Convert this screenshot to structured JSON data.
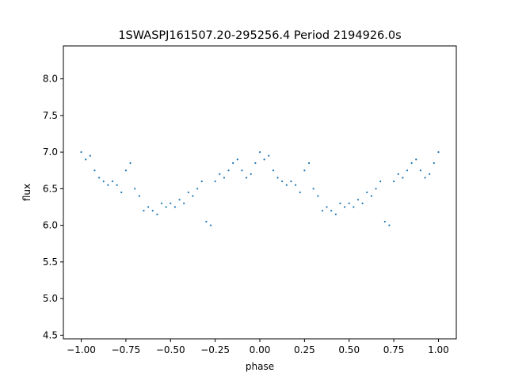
{
  "chart_data": {
    "type": "scatter",
    "title": "1SWASPJ161507.20-295256.4 Period 2194926.0s",
    "xlabel": "phase",
    "ylabel": "flux",
    "xlim": [
      -1.1,
      1.1
    ],
    "ylim": [
      4.45,
      8.45
    ],
    "xticks": [
      -1.0,
      -0.75,
      -0.5,
      -0.25,
      0.0,
      0.25,
      0.5,
      0.75,
      1.0
    ],
    "xtick_labels": [
      "−1.00",
      "−0.75",
      "−0.50",
      "−0.25",
      "0.00",
      "0.25",
      "0.50",
      "0.75",
      "1.00"
    ],
    "yticks": [
      4.5,
      5.0,
      5.5,
      6.0,
      6.5,
      7.0,
      7.5,
      8.0
    ],
    "ytick_labels": [
      "4.5",
      "5.0",
      "5.5",
      "6.0",
      "6.5",
      "7.0",
      "7.5",
      "8.0"
    ],
    "grid": false,
    "marker_color": "#1f77b4",
    "series": [
      {
        "x": [
          -1.0,
          -0.975,
          -0.95,
          -0.925,
          -0.9,
          -0.875,
          -0.85,
          -0.825,
          -0.8,
          -0.775,
          -0.75,
          -0.725,
          -0.7,
          -0.675,
          -0.65,
          -0.625,
          -0.6,
          -0.575,
          -0.55,
          -0.525,
          -0.5,
          -0.475,
          -0.45,
          -0.425,
          -0.4,
          -0.375,
          -0.35,
          -0.325,
          -0.3,
          -0.275,
          -0.25,
          -0.225,
          -0.2,
          -0.175,
          -0.15,
          -0.125,
          -0.1,
          -0.075,
          -0.05,
          -0.025,
          0.0,
          0.025,
          0.05,
          0.075,
          0.1,
          0.125,
          0.15,
          0.175,
          0.2,
          0.225,
          0.25,
          0.275,
          0.3,
          0.325,
          0.35,
          0.375,
          0.4,
          0.425,
          0.45,
          0.475,
          0.5,
          0.525,
          0.55,
          0.575,
          0.6,
          0.625,
          0.65,
          0.675,
          0.7,
          0.725,
          0.75,
          0.775,
          0.8,
          0.825,
          0.85,
          0.875,
          0.9,
          0.925,
          0.95,
          0.975,
          1.0
        ],
        "y": [
          7.0,
          6.9,
          6.95,
          6.75,
          6.65,
          6.6,
          6.55,
          6.6,
          6.55,
          6.45,
          6.75,
          6.85,
          6.5,
          6.4,
          6.2,
          6.25,
          6.2,
          6.15,
          6.3,
          6.25,
          6.3,
          6.25,
          6.35,
          6.3,
          6.45,
          6.4,
          6.5,
          6.6,
          6.05,
          6.0,
          6.6,
          6.7,
          6.65,
          6.75,
          6.85,
          6.9,
          6.75,
          6.65,
          6.7,
          6.85,
          7.0,
          6.9,
          6.95,
          6.75,
          6.65,
          6.6,
          6.55,
          6.6,
          6.55,
          6.45,
          6.75,
          6.85,
          6.5,
          6.4,
          6.2,
          6.25,
          6.2,
          6.15,
          6.3,
          6.25,
          6.3,
          6.25,
          6.35,
          6.3,
          6.45,
          6.4,
          6.5,
          6.6,
          6.05,
          6.0,
          6.6,
          6.7,
          6.65,
          6.75,
          6.85,
          6.9,
          6.75,
          6.65,
          6.7,
          6.85,
          7.0
        ]
      }
    ]
  }
}
